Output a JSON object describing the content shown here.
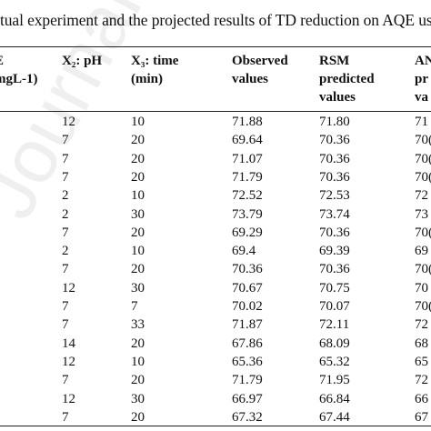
{
  "caption": "tual experiment and the projected results of TD reduction on AQE usi",
  "watermark": "Journal Pr",
  "headers": {
    "col0": [
      "E",
      "mgL-1)"
    ],
    "col1": [
      "X₂: pH",
      ""
    ],
    "col2": [
      "X₃: time",
      "(min)"
    ],
    "col3": [
      "Observed",
      "values"
    ],
    "col4": [
      "RSM",
      "predicted",
      "values"
    ],
    "col5": [
      "AN",
      "pr",
      "va"
    ]
  },
  "rows": [
    [
      "12",
      "10",
      "71.88",
      "71.80",
      "71"
    ],
    [
      "7",
      "20",
      "69.64",
      "70.36",
      "70("
    ],
    [
      "7",
      "20",
      "71.07",
      "70.36",
      "70("
    ],
    [
      "7",
      "20",
      "71.79",
      "70.36",
      "70("
    ],
    [
      "2",
      "10",
      "72.52",
      "72.53",
      "72"
    ],
    [
      "2",
      "30",
      "73.79",
      "73.74",
      "73"
    ],
    [
      "7",
      "20",
      "69.29",
      "70.36",
      "70("
    ],
    [
      "2",
      "10",
      "69.4",
      "69.39",
      "69"
    ],
    [
      "7",
      "20",
      "70.36",
      "70.36",
      "70("
    ],
    [
      "12",
      "30",
      "70.67",
      "70.75",
      "70"
    ],
    [
      "7",
      "7",
      "70.02",
      "70.07",
      "70("
    ],
    [
      "7",
      "33",
      "71.87",
      "72.11",
      "72"
    ],
    [
      "14",
      "20",
      "67.86",
      "68.09",
      "68"
    ],
    [
      "12",
      "10",
      "65.36",
      "65.32",
      "65"
    ],
    [
      "7",
      "20",
      "71.79",
      "71.95",
      "72"
    ],
    [
      "12",
      "30",
      "66.97",
      "66.84",
      "66"
    ],
    [
      "7",
      "20",
      "67.32",
      "67.44",
      "67"
    ]
  ]
}
